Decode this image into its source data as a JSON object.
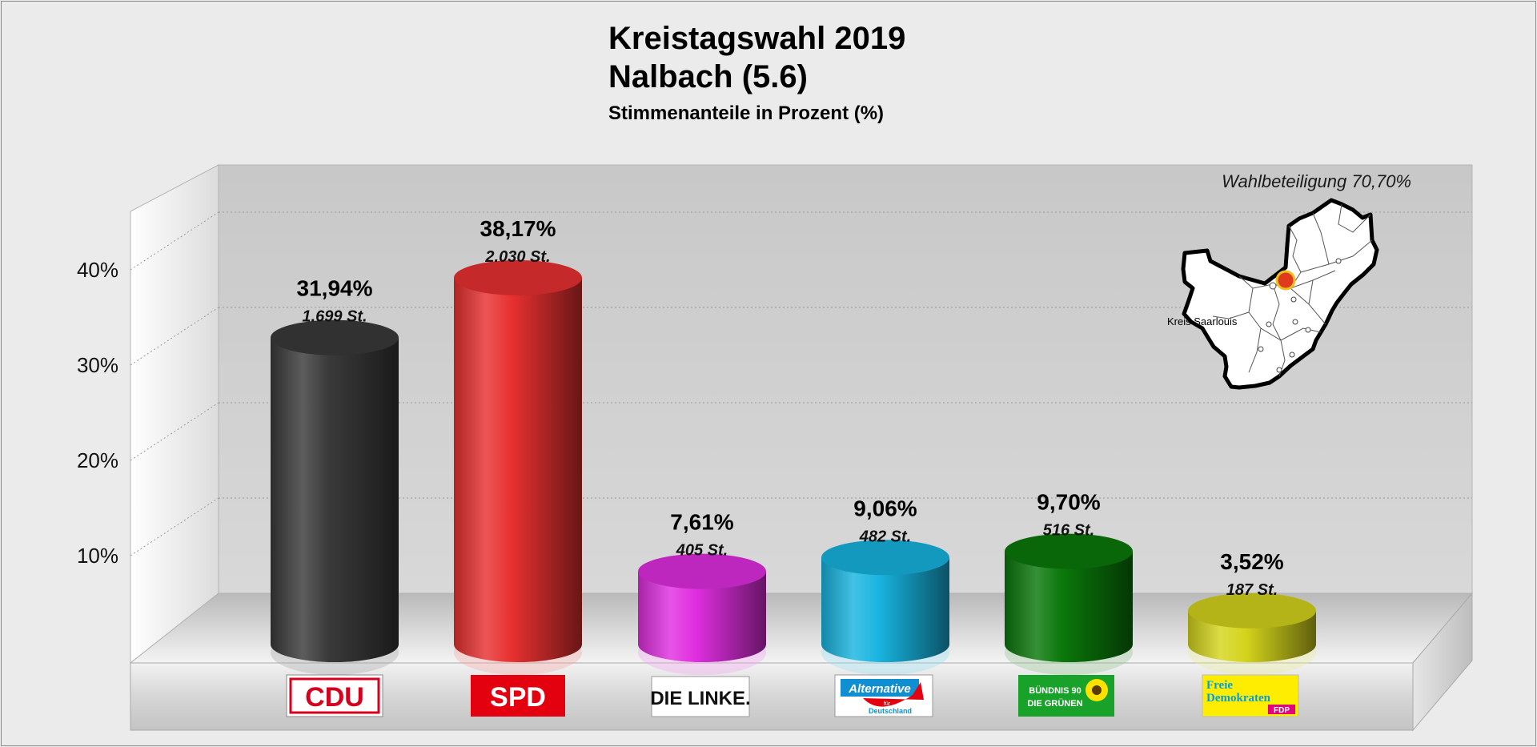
{
  "chart_data": {
    "type": "bar",
    "title": "Kreistagswahl 2019",
    "subtitle_line": "Nalbach (5.6)",
    "subtitle": "Stimmenanteile in Prozent (%)",
    "annotation": "Wahlbeteiligung 70,70%",
    "map_label": "Kreis Saarlouis",
    "categories": [
      "CDU",
      "SPD",
      "DIE LINKE.",
      "AfD",
      "BÜNDNIS 90 DIE GRÜNEN",
      "FDP"
    ],
    "values": [
      31.94,
      38.17,
      7.61,
      9.06,
      9.7,
      3.52
    ],
    "value_labels": [
      "31,94%",
      "38,17%",
      "7,61%",
      "9,06%",
      "9,70%",
      "3,52%"
    ],
    "vote_labels": [
      "1.699 St.",
      "2.030 St.",
      "405 St.",
      "482 St.",
      "516 St.",
      "187 St."
    ],
    "colors": [
      "#3a3a3a",
      "#e83030",
      "#e02ee0",
      "#18b4e0",
      "#0a780a",
      "#d4d41c"
    ],
    "yticks": [
      10,
      20,
      30,
      40
    ],
    "ytick_labels": [
      "10%",
      "20%",
      "30%",
      "40%"
    ],
    "ylim": [
      0,
      45
    ],
    "grid": true,
    "logos": {
      "cdu": "CDU",
      "spd": "SPD",
      "linke": "DIE LINKE.",
      "afd_line1": "Alternative",
      "afd_line2": "für",
      "afd_line3": "Deutschland",
      "gruene_line1": "BÜNDNIS 90",
      "gruene_line2": "DIE GRÜNEN",
      "fdp_line1": "Freie",
      "fdp_line2": "Demokraten",
      "fdp_line3": "FDP"
    }
  }
}
